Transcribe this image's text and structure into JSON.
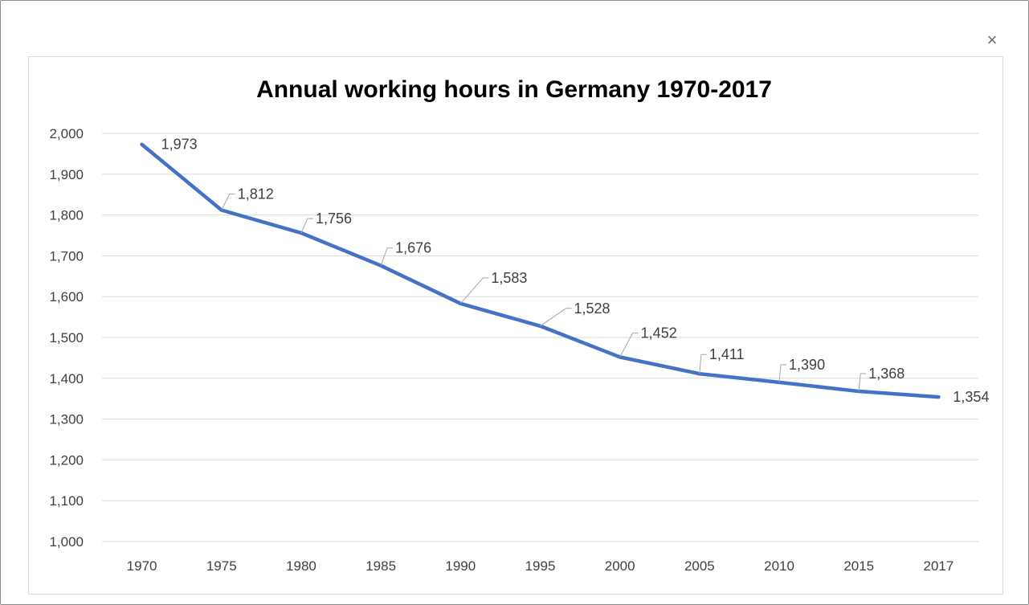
{
  "window": {
    "close_glyph": "×"
  },
  "chart_data": {
    "type": "line",
    "title": "Annual working hours in Germany 1970-2017",
    "xlabel": "",
    "ylabel": "",
    "categories": [
      "1970",
      "1975",
      "1980",
      "1985",
      "1990",
      "1995",
      "2000",
      "2005",
      "2010",
      "2015",
      "2017"
    ],
    "series": [
      {
        "values": [
          1973,
          1812,
          1756,
          1676,
          1583,
          1528,
          1452,
          1411,
          1390,
          1368,
          1354
        ],
        "color": "#4472C4"
      }
    ],
    "data_labels": [
      "1,973",
      "1,812",
      "1,756",
      "1,676",
      "1,583",
      "1,528",
      "1,452",
      "1,411",
      "1,390",
      "1,368",
      "1,354"
    ],
    "ylim": [
      1000,
      2000
    ],
    "yticks": [
      "1,000",
      "1,100",
      "1,200",
      "1,300",
      "1,400",
      "1,500",
      "1,600",
      "1,700",
      "1,800",
      "1,900",
      "2,000"
    ],
    "grid": true,
    "legend": "none"
  }
}
